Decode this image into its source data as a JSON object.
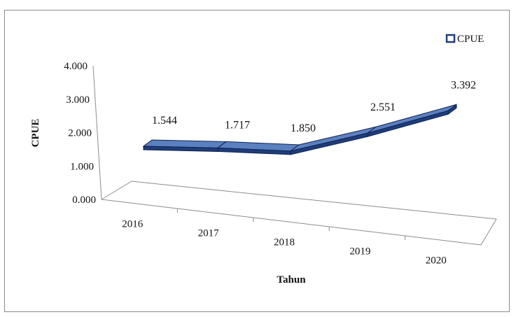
{
  "chart_data": {
    "type": "line",
    "style": "3d-ribbon",
    "categories": [
      "2016",
      "2017",
      "2018",
      "2019",
      "2020"
    ],
    "series": [
      {
        "name": "CPUE",
        "values": [
          1.544,
          1.717,
          1.85,
          2.551,
          3.392
        ],
        "color": "#1f3d7a"
      }
    ],
    "data_labels": [
      "1.544",
      "1.717",
      "1.850",
      "2.551",
      "3.392"
    ],
    "y_ticks": [
      "0.000",
      "1.000",
      "2.000",
      "3.000",
      "4.000"
    ],
    "ylim": [
      0,
      4
    ],
    "xlabel": "Tahun",
    "ylabel": "CPUE",
    "legend": {
      "position": "top-right",
      "label": "CPUE"
    },
    "grid": false
  },
  "colors": {
    "ribbon_front": "#1f3d7a",
    "ribbon_top": "#5b80c0",
    "axis": "#8c8c8c"
  }
}
